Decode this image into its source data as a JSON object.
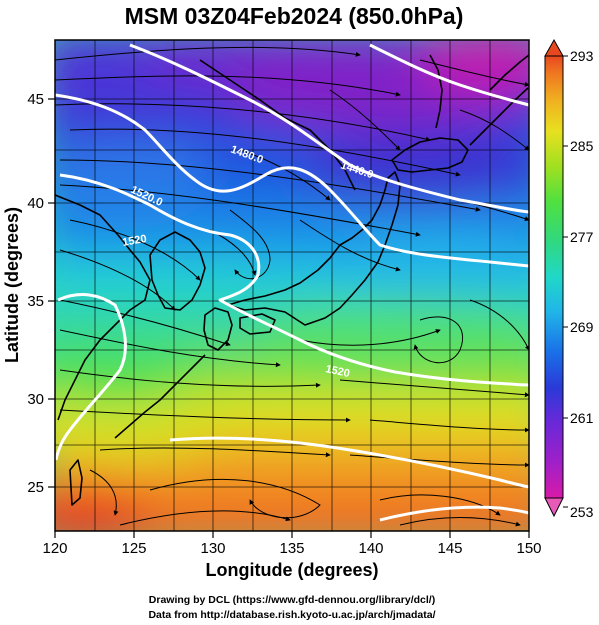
{
  "title": "MSM 03Z04Feb2024 (850.0hPa)",
  "axes": {
    "xlabel": "Longitude (degrees)",
    "ylabel": "Latitude  (degrees)",
    "xticks": [
      "120",
      "125",
      "130",
      "135",
      "140",
      "145",
      "150"
    ],
    "yticks": [
      "25",
      "30",
      "35",
      "40",
      "45"
    ],
    "xlim": [
      120,
      150
    ],
    "ylim": [
      22.4,
      47.6
    ]
  },
  "colorbar": {
    "ticks": [
      "293",
      "285",
      "277",
      "269",
      "261",
      "253"
    ],
    "range": [
      253,
      293
    ],
    "colors": [
      "#d81aa8",
      "#a020c8",
      "#6a28d8",
      "#2a3ad8",
      "#1a70e8",
      "#20b4e8",
      "#20d8c8",
      "#30d880",
      "#50e040",
      "#a0e020",
      "#e8e020",
      "#f0b020",
      "#f07820",
      "#e84820"
    ]
  },
  "contours": {
    "labels": [
      "1440.0",
      "1480.0",
      "1520.0",
      "1520",
      "1520"
    ]
  },
  "credits": {
    "line1": "Drawing by DCL (https://www.gfd-dennou.org/library/dcl/)",
    "line2": "Data from http://database.rish.kyoto-u.ac.jp/arch/jmadata/"
  }
}
